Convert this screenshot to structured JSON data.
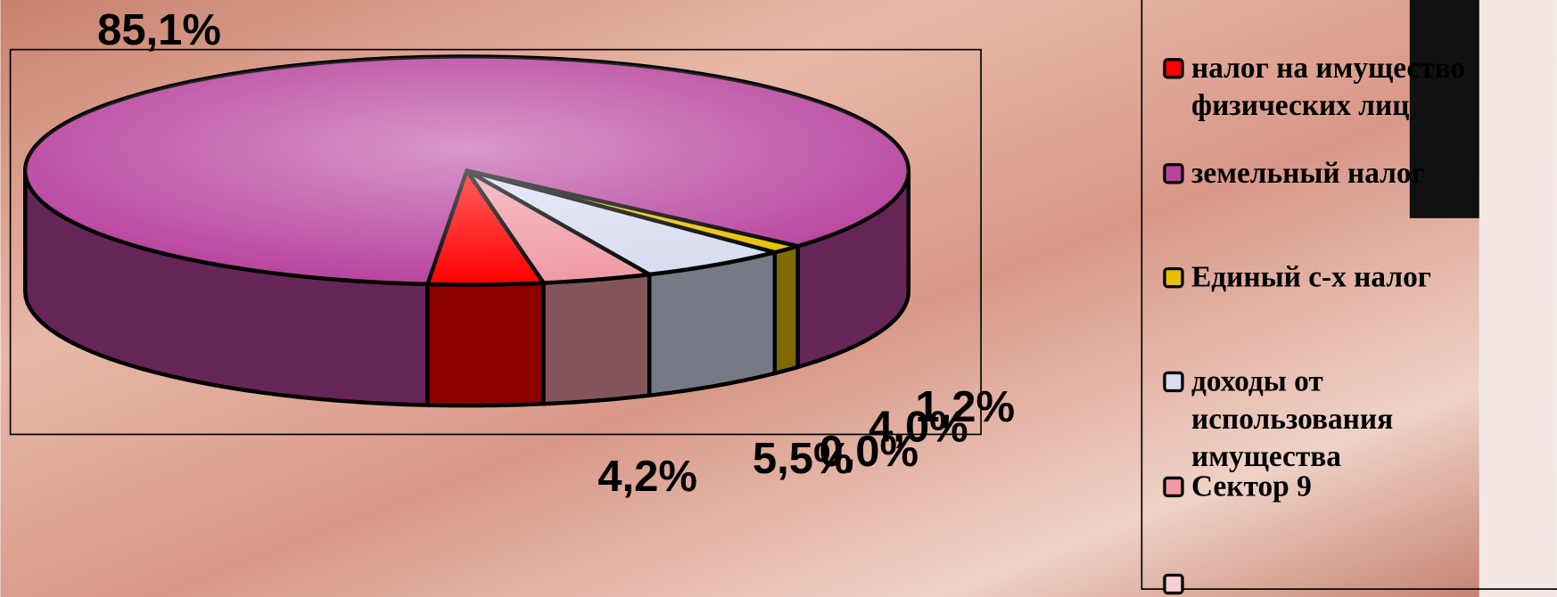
{
  "chart_data": {
    "type": "pie3d",
    "categories": [
      "налог на имущество физических лиц",
      "земельный налог",
      "Единый с-х налог",
      "доходы от использования имущества",
      "Сектор 9",
      null
    ],
    "values": [
      4.2,
      85.1,
      1.2,
      5.5,
      4.0,
      0.0
    ],
    "value_labels": [
      "4,2%",
      "85,1%",
      "1,2%",
      "5,5%",
      "4,0%",
      "0,0%"
    ],
    "colors": [
      "#ff0000",
      "#b8449e",
      "#e8c000",
      "#d8dcf0",
      "#f09aa6",
      "#f6d0d4"
    ]
  }
}
